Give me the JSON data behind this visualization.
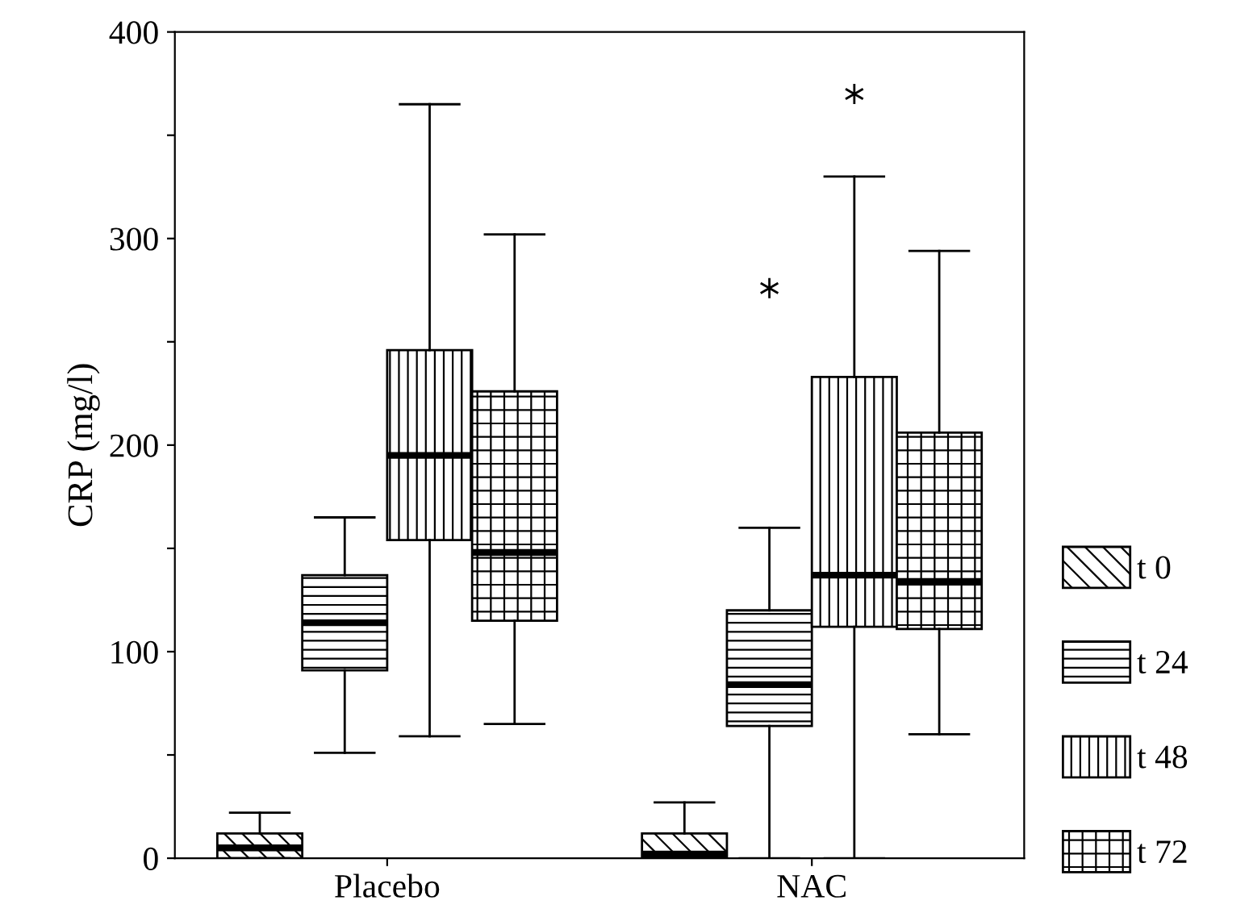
{
  "chart_data": {
    "type": "box",
    "ylabel": "CRP (mg/l)",
    "categories": [
      "Placebo",
      "NAC"
    ],
    "ylim": [
      0,
      400
    ],
    "yticks": [
      0,
      {
        "value": 50,
        "label": null
      },
      100,
      {
        "value": 150,
        "label": null
      },
      200,
      {
        "value": 250,
        "label": null
      },
      300,
      {
        "value": 350,
        "label": null
      },
      400
    ],
    "legend": "right",
    "grid": false,
    "series": [
      {
        "name": "t 0",
        "color": "#000000",
        "boxes": [
          {
            "low": 0,
            "q1": 0,
            "median": 5,
            "q3": 12,
            "high": 22
          },
          {
            "low": 0,
            "q1": 0,
            "median": 2,
            "q3": 12,
            "high": 27
          }
        ]
      },
      {
        "name": "t 24",
        "color": "#000000",
        "boxes": [
          {
            "low": 51,
            "q1": 91,
            "median": 114,
            "q3": 137,
            "high": 165
          },
          {
            "low": 0,
            "q1": 64,
            "median": 84,
            "q3": 120,
            "high": 160,
            "outliers": [
              276
            ]
          }
        ]
      },
      {
        "name": "t 48",
        "color": "#000000",
        "boxes": [
          {
            "low": 59,
            "q1": 154,
            "median": 195,
            "q3": 246,
            "high": 365
          },
          {
            "low": 0,
            "q1": 112,
            "median": 137,
            "q3": 233,
            "high": 330,
            "outliers": [
              370
            ]
          }
        ]
      },
      {
        "name": "t 72",
        "color": "#000000",
        "boxes": [
          {
            "low": 65,
            "q1": 115,
            "median": 148,
            "q3": 226,
            "high": 302
          },
          {
            "low": 60,
            "q1": 111,
            "median": 134,
            "q3": 206,
            "high": 294
          }
        ]
      }
    ]
  }
}
